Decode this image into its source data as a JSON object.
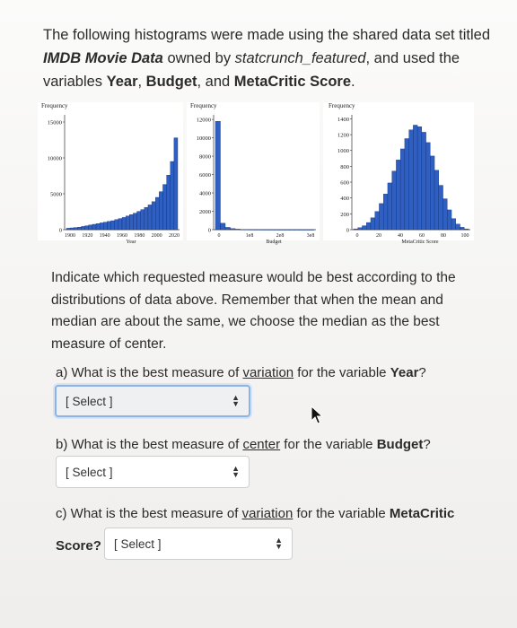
{
  "intro": {
    "p1": "The following histograms were made using the shared data set titled ",
    "dataset": "IMDB Movie Data",
    "p2": " owned by ",
    "owner": "statcrunch_featured",
    "p3": ", and used the variables ",
    "var1": "Year",
    "p4": ", ",
    "var2": "Budget",
    "p5": ", and ",
    "var3": "MetaCritic Score",
    "p6": "."
  },
  "instruction": "Indicate which requested measure would be best according to the distributions of data above. Remember that when the mean and median are about the same, we choose the median as the best measure of center.",
  "questions": [
    {
      "prefix": "a) What is the best measure of ",
      "keyword": "variation",
      "suffix": " for the variable ",
      "variable": "Year",
      "end": "?",
      "select": "[ Select ]"
    },
    {
      "prefix": "b) What is the best measure of ",
      "keyword": "center",
      "suffix": " for the variable ",
      "variable": "Budget",
      "end": "?",
      "select": "[ Select ]"
    },
    {
      "prefix": "c) What is the best measure of ",
      "keyword": "variation",
      "suffix": " for the variable ",
      "variable": "MetaCritic",
      "line2": "Score?",
      "select": "[ Select ]"
    }
  ],
  "chart_data": [
    {
      "type": "bar",
      "ylabel": "Frequency",
      "xlabel": "Year",
      "yticks": [
        "15000",
        "10000",
        "5000",
        "0"
      ],
      "xticks": [
        "1900",
        "1920",
        "1940",
        "1960",
        "1980",
        "2000",
        "2020"
      ],
      "ylim": [
        0,
        16000
      ],
      "values": [
        200,
        250,
        300,
        350,
        450,
        550,
        650,
        750,
        850,
        950,
        1050,
        1150,
        1250,
        1400,
        1550,
        1700,
        1900,
        2100,
        2300,
        2550,
        2800,
        3100,
        3450,
        3900,
        4500,
        5300,
        6300,
        7600,
        9500,
        12800
      ]
    },
    {
      "type": "bar",
      "ylabel": "Frequency",
      "xlabel": "Budget",
      "yticks": [
        "12000",
        "10000",
        "8000",
        "6000",
        "4000",
        "2000",
        "0"
      ],
      "xticks": [
        "0",
        "1e8",
        "2e8",
        "3e8"
      ],
      "ylim": [
        0,
        12500
      ],
      "values": [
        11800,
        700,
        250,
        120,
        60,
        30,
        15,
        10,
        8,
        6,
        5,
        4,
        3,
        2,
        2,
        1,
        1,
        1,
        1,
        1
      ]
    },
    {
      "type": "bar",
      "ylabel": "Frequency",
      "xlabel": "MetaCritic Score",
      "yticks": [
        "1400",
        "1200",
        "1000",
        "800",
        "600",
        "400",
        "200",
        "0"
      ],
      "xticks": [
        "0",
        "20",
        "40",
        "60",
        "80",
        "100"
      ],
      "ylim": [
        0,
        1450
      ],
      "values": [
        10,
        25,
        50,
        90,
        150,
        230,
        330,
        450,
        590,
        740,
        880,
        1020,
        1150,
        1260,
        1320,
        1300,
        1230,
        1100,
        930,
        750,
        560,
        390,
        250,
        140,
        70,
        30,
        10
      ]
    }
  ]
}
